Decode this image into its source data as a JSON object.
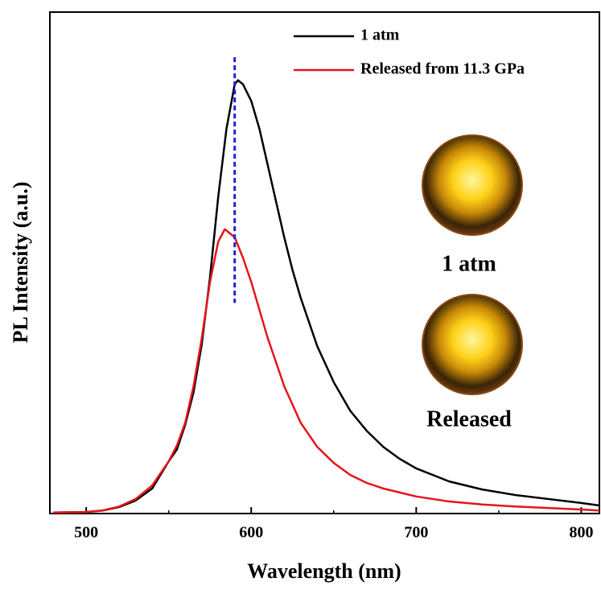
{
  "chart_data": {
    "type": "line",
    "xlabel": "Wavelength (nm)",
    "ylabel": "PL Intensity (a.u.)",
    "xlim": [
      478,
      811
    ],
    "ylim": [
      0,
      100
    ],
    "xticks": [
      500,
      600,
      700,
      800
    ],
    "xminorticks": [
      550,
      650,
      750
    ],
    "legend": "top-right",
    "series": [
      {
        "name": "1 atm",
        "color": "#000000",
        "x": [
          480,
          500,
          510,
          520,
          530,
          540,
          550,
          555,
          560,
          565,
          570,
          575,
          580,
          585,
          590,
          592,
          595,
          600,
          605,
          610,
          615,
          620,
          625,
          630,
          640,
          650,
          660,
          670,
          680,
          690,
          700,
          720,
          740,
          760,
          780,
          800,
          811
        ],
        "values": [
          0.2,
          0.3,
          0.6,
          1.3,
          2.6,
          5.0,
          10.4,
          12.8,
          17.7,
          24.1,
          33.7,
          47.0,
          63.1,
          76.7,
          85.6,
          86.4,
          85.6,
          82.3,
          76.7,
          69.5,
          62.3,
          55.1,
          48.6,
          43.0,
          33.4,
          26.2,
          20.5,
          16.5,
          13.3,
          10.9,
          9.0,
          6.4,
          4.8,
          3.7,
          2.9,
          2.1,
          1.6
        ]
      },
      {
        "name": "Released from 11.3 GPa",
        "color": "#e3161b",
        "x": [
          480,
          500,
          510,
          520,
          530,
          540,
          550,
          555,
          560,
          565,
          570,
          575,
          580,
          584,
          590,
          595,
          600,
          605,
          610,
          620,
          630,
          640,
          650,
          660,
          670,
          680,
          700,
          720,
          740,
          760,
          780,
          800,
          811
        ],
        "values": [
          0.2,
          0.3,
          0.6,
          1.4,
          2.9,
          5.6,
          10.4,
          13.6,
          18.1,
          25.3,
          34.9,
          46.1,
          54.2,
          56.7,
          55.1,
          51.0,
          46.2,
          40.6,
          35.0,
          25.4,
          18.1,
          13.3,
          10.1,
          7.7,
          6.1,
          5.0,
          3.4,
          2.4,
          1.8,
          1.4,
          1.1,
          0.8,
          0.6
        ]
      }
    ],
    "vline": {
      "x": 590,
      "ymin": 42,
      "ymax": 91,
      "color": "#1f1fd8"
    },
    "annotations": [
      "1 atm",
      "Released"
    ]
  }
}
